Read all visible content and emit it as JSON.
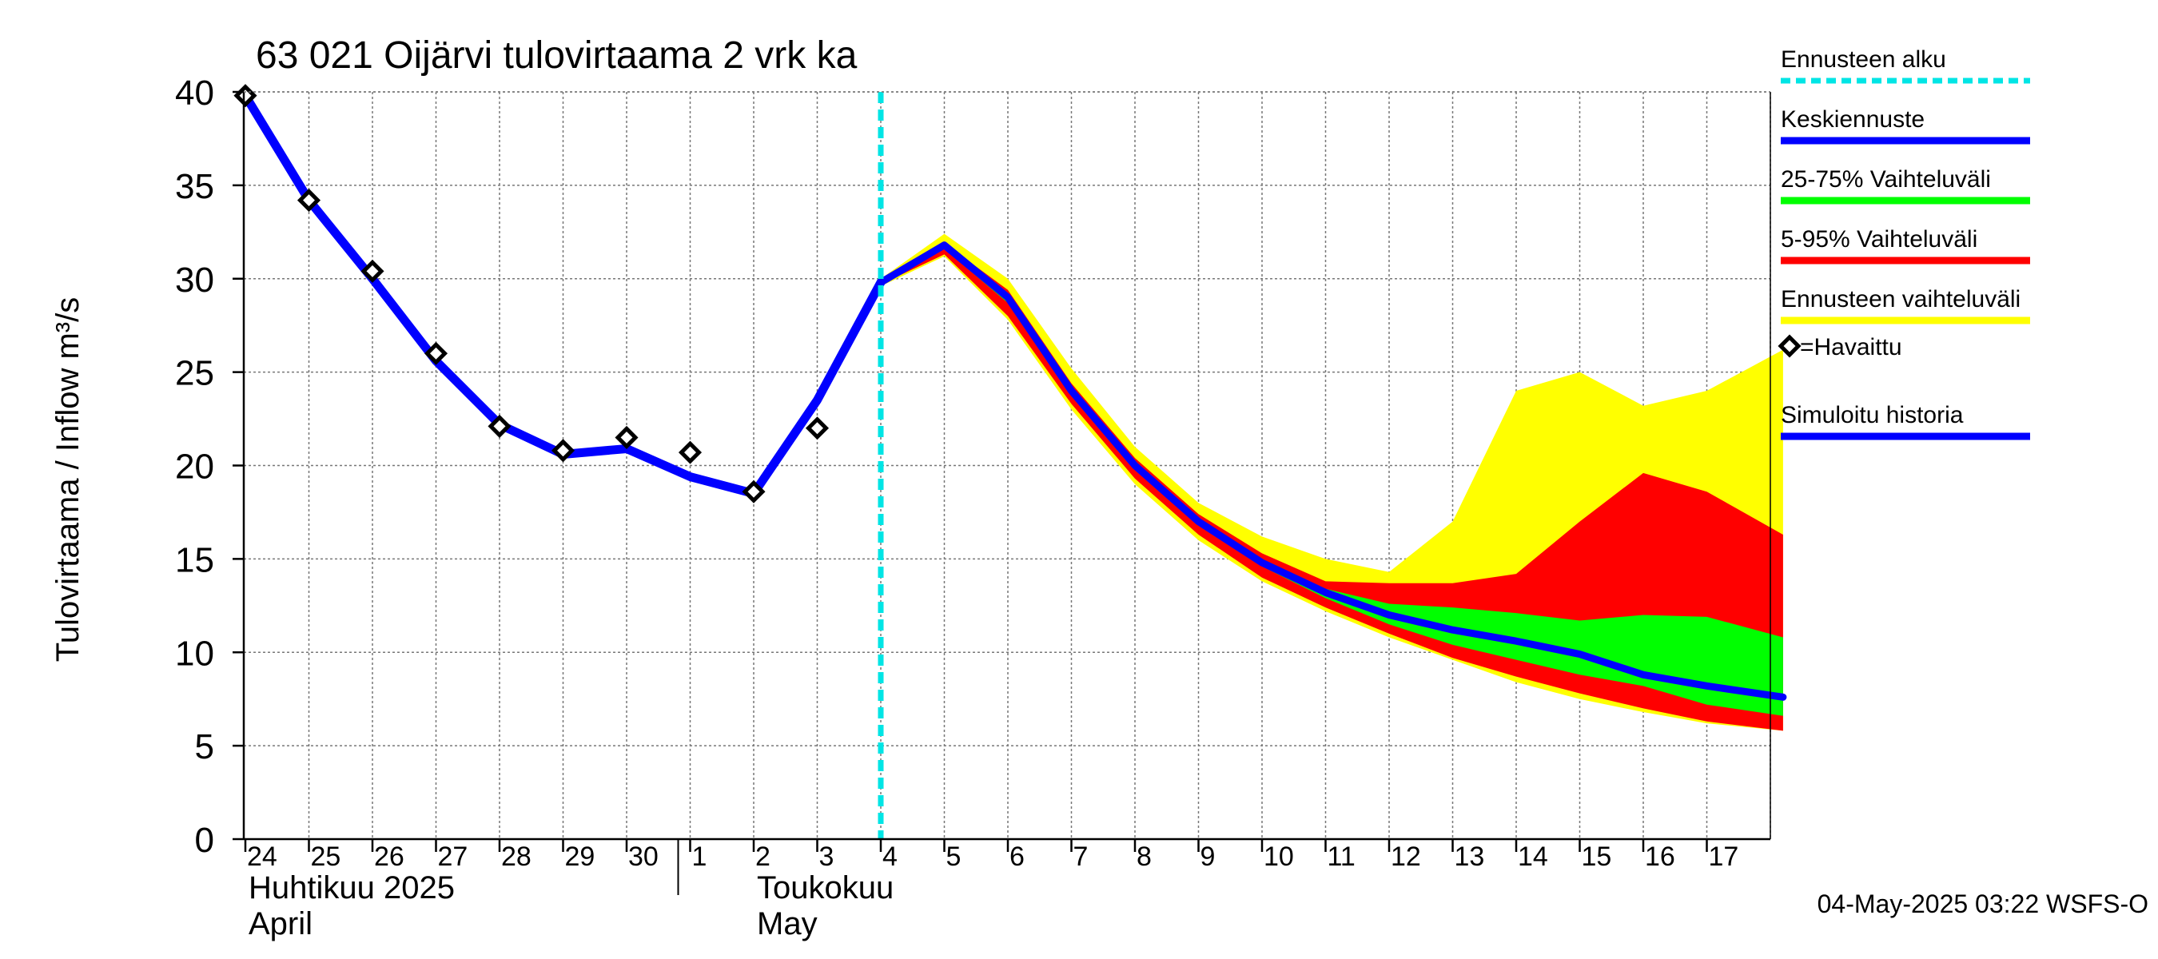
{
  "chart_data": {
    "type": "line",
    "title": "63 021 Oijärvi tulovirtaama 2 vrk ka",
    "ylabel": "Tulovirtaama / Inflow    m³/s",
    "ylim": [
      0,
      40
    ],
    "yticks": [
      "0",
      "5",
      "10",
      "15",
      "20",
      "25",
      "30",
      "35",
      "40"
    ],
    "xlim": [
      "2025-04-24",
      "2025-05-18"
    ],
    "day_labels": [
      "24",
      "25",
      "26",
      "27",
      "28",
      "29",
      "30",
      "1",
      "2",
      "3",
      "4",
      "5",
      "6",
      "7",
      "8",
      "9",
      "10",
      "11",
      "12",
      "13",
      "14",
      "15",
      "16",
      "17"
    ],
    "month_labels": [
      {
        "line1": "Huhtikuu  2025",
        "line2": "April"
      },
      {
        "line1": "Toukokuu",
        "line2": "May"
      }
    ],
    "forecast_start": "2025-05-04",
    "grid": true,
    "legend_position": "right",
    "legend": [
      {
        "label": "Ennusteen alku",
        "color": "#00e5e5",
        "style": "dashed"
      },
      {
        "label": "Keskiennuste",
        "color": "#0000ff",
        "style": "solid"
      },
      {
        "label": "25-75% Vaihteluväli",
        "color": "#00ff00",
        "style": "solid"
      },
      {
        "label": "5-95% Vaihteluväli",
        "color": "#ff0000",
        "style": "solid"
      },
      {
        "label": "Ennusteen vaihteluväli",
        "color": "#ffff00",
        "style": "solid"
      },
      {
        "label": "=Havaittu",
        "color": "#000000",
        "style": "marker"
      },
      {
        "label": "Simuloitu historia",
        "color": "#0000ff",
        "style": "solid"
      }
    ],
    "footer": "04-May-2025 03:22 WSFS-O",
    "colors": {
      "envelope": "#ffff00",
      "p5_95": "#ff0000",
      "p25_75": "#00ff00",
      "median": "#0000ff",
      "simulated": "#0000ff",
      "forecast_start": "#00e5e5",
      "observed": "#000000"
    },
    "series": [
      {
        "name": "Simuloitu historia",
        "x": [
          0,
          1,
          2,
          3,
          4,
          5,
          6,
          7,
          8,
          9,
          10
        ],
        "y": [
          39.8,
          34.2,
          30.0,
          25.6,
          22.2,
          20.6,
          20.9,
          19.4,
          18.5,
          23.5,
          29.8
        ]
      },
      {
        "name": "Havaittu",
        "x": [
          0,
          1,
          2,
          3,
          4,
          5,
          6,
          7,
          8,
          9
        ],
        "y": [
          39.8,
          34.2,
          30.4,
          26.0,
          22.1,
          20.8,
          21.5,
          20.7,
          18.6,
          22.0
        ]
      },
      {
        "name": "Keskiennuste",
        "x": [
          10,
          11,
          12,
          13,
          14,
          15,
          16,
          17,
          18,
          19,
          20,
          21,
          22,
          23,
          24.2
        ],
        "y": [
          29.8,
          31.8,
          29.0,
          24.0,
          20.0,
          17.0,
          14.8,
          13.2,
          12.0,
          11.2,
          10.6,
          9.9,
          8.8,
          8.2,
          7.6
        ]
      },
      {
        "name": "Ennusteen vaihteluväli",
        "x": [
          10,
          11,
          12,
          13,
          14,
          15,
          16,
          17,
          18,
          19,
          20,
          21,
          22,
          23,
          24.2
        ],
        "low": [
          29.6,
          31.2,
          27.8,
          23.0,
          19.0,
          16.0,
          13.8,
          12.2,
          10.8,
          9.6,
          8.4,
          7.5,
          6.8,
          6.2,
          5.8
        ],
        "high": [
          30.0,
          32.4,
          30.0,
          25.2,
          21.0,
          18.0,
          16.2,
          15.0,
          14.3,
          17.0,
          24.0,
          25.0,
          23.2,
          24.0,
          26.2
        ]
      },
      {
        "name": "5-95% Vaihteluväli",
        "x": [
          10,
          11,
          12,
          13,
          14,
          15,
          16,
          17,
          18,
          19,
          20,
          21,
          22,
          23,
          24.2
        ],
        "low": [
          29.7,
          31.3,
          28.0,
          23.3,
          19.3,
          16.3,
          14.0,
          12.4,
          11.0,
          9.7,
          8.7,
          7.8,
          7.0,
          6.3,
          5.8
        ],
        "high": [
          29.9,
          31.9,
          29.4,
          24.4,
          20.4,
          17.4,
          15.3,
          13.8,
          13.7,
          13.7,
          14.2,
          17.0,
          19.6,
          18.6,
          16.3
        ]
      },
      {
        "name": "25-75% Vaihteluväli",
        "x": [
          10,
          11,
          12,
          13,
          14,
          15,
          16,
          17,
          18,
          19,
          20,
          21,
          22,
          23,
          24.2
        ],
        "low": [
          29.8,
          31.6,
          28.7,
          23.8,
          19.8,
          16.8,
          14.6,
          12.9,
          11.5,
          10.4,
          9.6,
          8.8,
          8.2,
          7.2,
          6.6
        ],
        "high": [
          29.8,
          31.7,
          29.1,
          24.2,
          20.2,
          17.2,
          15.0,
          13.4,
          12.6,
          12.4,
          12.1,
          11.7,
          12.0,
          11.9,
          10.8
        ]
      }
    ]
  }
}
